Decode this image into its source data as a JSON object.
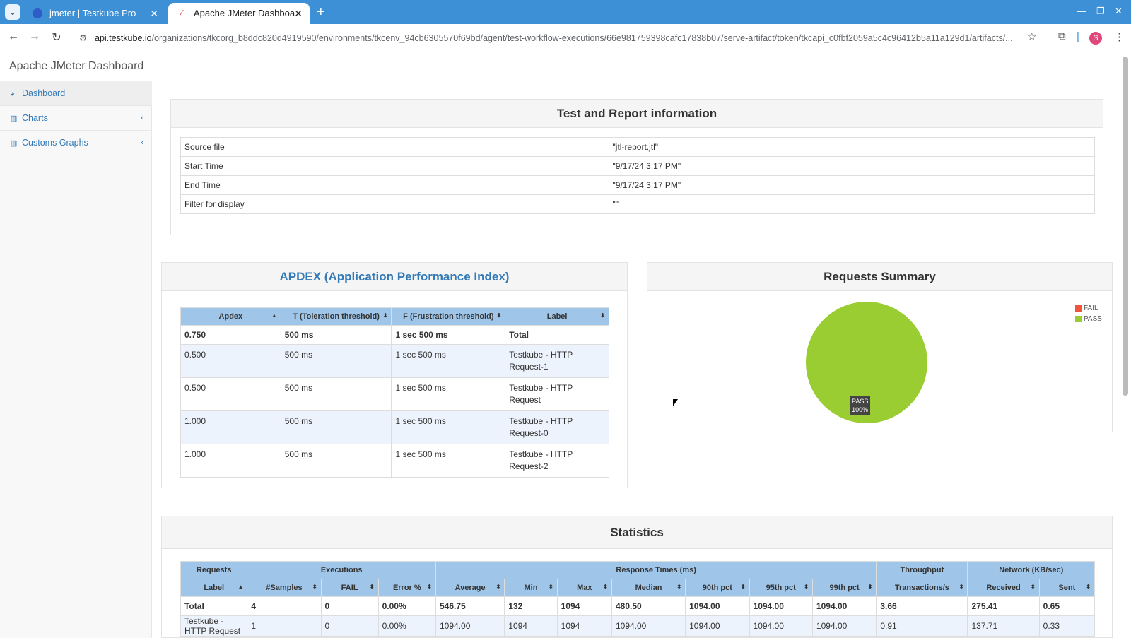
{
  "browser": {
    "tabs": [
      {
        "title": "jmeter | Testkube Pro",
        "active": false
      },
      {
        "title": "Apache JMeter Dashboa",
        "active": true
      }
    ],
    "url_host": "api.testkube.io",
    "url_path": "/organizations/tkcorg_b8ddc820d4919590/environments/tkcenv_94cb6305570f69bd/agent/test-workflow-executions/66e981759398cafc17838b07/serve-artifact/token/tkcapi_c0fbf2059a5c4c96412b5a11a129d1/artifacts/...",
    "profile_initial": "S"
  },
  "app": {
    "title": "Apache JMeter Dashboard"
  },
  "sidebar": {
    "items": [
      {
        "label": "Dashboard",
        "icon": "dashboard-icon"
      },
      {
        "label": "Charts",
        "icon": "bar-chart-icon"
      },
      {
        "label": "Customs Graphs",
        "icon": "bar-chart-icon"
      }
    ]
  },
  "report_info": {
    "title": "Test and Report information",
    "rows": [
      {
        "key": "Source file",
        "value": "\"jtl-report.jtl\""
      },
      {
        "key": "Start Time",
        "value": "\"9/17/24 3:17 PM\""
      },
      {
        "key": "End Time",
        "value": "\"9/17/24 3:17 PM\""
      },
      {
        "key": "Filter for display",
        "value": "\"\""
      }
    ]
  },
  "apdex": {
    "title": "APDEX (Application Performance Index)",
    "headers": [
      "Apdex",
      "T (Toleration threshold)",
      "F (Frustration threshold)",
      "Label"
    ],
    "rows": [
      [
        "0.750",
        "500 ms",
        "1 sec 500 ms",
        "Total"
      ],
      [
        "0.500",
        "500 ms",
        "1 sec 500 ms",
        "Testkube - HTTP Request-1"
      ],
      [
        "0.500",
        "500 ms",
        "1 sec 500 ms",
        "Testkube - HTTP Request"
      ],
      [
        "1.000",
        "500 ms",
        "1 sec 500 ms",
        "Testkube - HTTP Request-0"
      ],
      [
        "1.000",
        "500 ms",
        "1 sec 500 ms",
        "Testkube - HTTP Request-2"
      ]
    ]
  },
  "requests_summary": {
    "title": "Requests Summary",
    "legend": [
      {
        "label": "FAIL",
        "color": "#f0553c"
      },
      {
        "label": "PASS",
        "color": "#9acd32"
      }
    ],
    "pie_label": "PASS",
    "pie_percent": "100%",
    "chart_data": {
      "type": "pie",
      "categories": [
        "FAIL",
        "PASS"
      ],
      "values": [
        0,
        100
      ]
    }
  },
  "statistics": {
    "title": "Statistics",
    "groups": [
      "Requests",
      "Executions",
      "Response Times (ms)",
      "Throughput",
      "Network (KB/sec)"
    ],
    "headers": [
      "Label",
      "#Samples",
      "FAIL",
      "Error %",
      "Average",
      "Min",
      "Max",
      "Median",
      "90th pct",
      "95th pct",
      "99th pct",
      "Transactions/s",
      "Received",
      "Sent"
    ],
    "rows": [
      [
        "Total",
        "4",
        "0",
        "0.00%",
        "546.75",
        "132",
        "1094",
        "480.50",
        "1094.00",
        "1094.00",
        "1094.00",
        "3.66",
        "275.41",
        "0.65"
      ],
      [
        "Testkube - HTTP Request",
        "1",
        "0",
        "0.00%",
        "1094.00",
        "1094",
        "1094",
        "1094.00",
        "1094.00",
        "1094.00",
        "1094.00",
        "0.91",
        "137.71",
        "0.33"
      ]
    ]
  }
}
